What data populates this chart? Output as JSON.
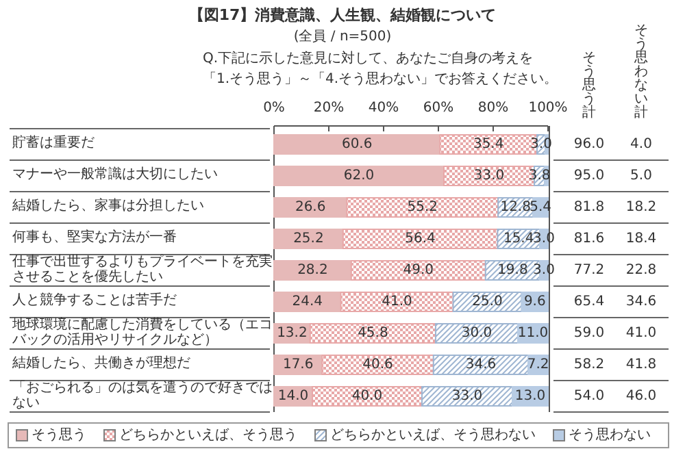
{
  "chart_data": {
    "type": "bar",
    "orientation": "horizontal",
    "stacked": true,
    "title": "【図17】消費意識、人生観、結婚観について",
    "subtitle": "(全員 / n=500)",
    "categories": [
      "貯蓄は重要だ",
      "マナーや一般常識は大切にしたい",
      "結婚したら、家事は分担したい",
      "何事も、堅実な方法が一番",
      "仕事で出世するよりもプライベートを充実させることを優先したい",
      "人と競争することは苦手だ",
      "地球環境に配慮した消費をしている（エコバックの活用やリサイクルなど）",
      "結婚したら、共働きが理想だ",
      "「おごられる」のは気を遣うので好きではない"
    ],
    "series": [
      {
        "name": "そう思う",
        "color": "#e6b9b8",
        "values": [
          60.6,
          62.0,
          26.6,
          25.2,
          28.2,
          24.4,
          13.2,
          17.6,
          14.0
        ],
        "value_labels": [
          "60.6",
          "62.0",
          "26.6",
          "25.2",
          "28.2",
          "24.4",
          "13.2",
          "17.6",
          "14.0"
        ]
      },
      {
        "name": "どちらかといえば、そう思う",
        "color": "#e8a8a8",
        "values": [
          35.4,
          33.0,
          55.2,
          56.4,
          49.0,
          41.0,
          45.8,
          40.6,
          40.0
        ],
        "value_labels": [
          "35.4",
          "33.0",
          "55.2",
          "56.4",
          "49.0",
          "41.0",
          "45.8",
          "40.6",
          "40.0"
        ]
      },
      {
        "name": "どちらかといえば、そう思わない",
        "color": "#9fb6d2",
        "values": [
          3.0,
          3.8,
          12.8,
          15.4,
          19.8,
          25.0,
          30.0,
          34.6,
          33.0
        ],
        "value_labels": [
          "3.0",
          "3.8",
          "12.8",
          "15.4",
          "19.8",
          "25.0",
          "30.0",
          "34.6",
          "33.0"
        ]
      },
      {
        "name": "そう思わない",
        "color": "#b8cce4",
        "values": [
          1.0,
          1.2,
          5.4,
          3.0,
          3.0,
          9.6,
          11.0,
          7.2,
          13.0
        ],
        "value_labels": [
          null,
          null,
          "5.4",
          "3.0",
          "3.0",
          "9.6",
          "11.0",
          "7.2",
          "13.0"
        ]
      }
    ],
    "xlim": [
      0,
      100
    ],
    "xticks": [
      {
        "value": 0,
        "label": "0%"
      },
      {
        "value": 20,
        "label": "20%"
      },
      {
        "value": 40,
        "label": "40%"
      },
      {
        "value": 60,
        "label": "60%"
      },
      {
        "value": 80,
        "label": "80%"
      },
      {
        "value": 100,
        "label": "100%"
      }
    ],
    "legend": "bottom",
    "annotations": [
      "Q.下記に示した意見に対して、あなたご自身の考えを",
      "「1.そう思う」～「4.そう思わない」でお答えください。",
      "そう思う計",
      "そう思わない計",
      "96.0",
      "4.0",
      "95.0",
      "5.0",
      "81.8",
      "18.2",
      "81.6",
      "18.4",
      "77.2",
      "22.8",
      "65.4",
      "34.6",
      "59.0",
      "41.0",
      "58.2",
      "41.8",
      "54.0",
      "46.0"
    ]
  }
}
